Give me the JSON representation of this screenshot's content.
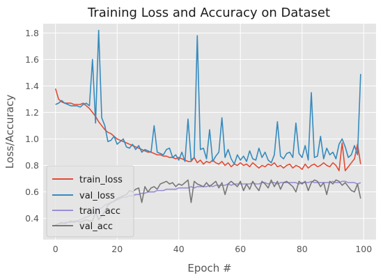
{
  "chart_data": {
    "type": "line",
    "title": "Training Loss and Accuracy on Dataset",
    "xlabel": "Epoch #",
    "ylabel": "Loss/Accuracy",
    "xlim": [
      -4,
      104
    ],
    "ylim": [
      0.24,
      1.87
    ],
    "xticks": [
      0,
      20,
      40,
      60,
      80,
      100
    ],
    "yticks": [
      0.4,
      0.6,
      0.8,
      1.0,
      1.2,
      1.4,
      1.6,
      1.8
    ],
    "ytick_labels": [
      "0.4",
      "0.6",
      "0.8",
      "1.0",
      "1.2",
      "1.4",
      "1.6",
      "1.8"
    ],
    "grid": true,
    "legend_position": "lower-left",
    "colors": {
      "plot_bg": "#E5E5E5",
      "grid": "#FFFFFF",
      "train_loss": "#E24A33",
      "val_loss": "#348ABD",
      "train_acc": "#988ED5",
      "val_acc": "#777777"
    },
    "series": [
      {
        "name": "train_loss",
        "values": [
          1.38,
          1.3,
          1.28,
          1.27,
          1.27,
          1.27,
          1.26,
          1.26,
          1.26,
          1.27,
          1.25,
          1.23,
          1.2,
          1.17,
          1.13,
          1.1,
          1.07,
          1.05,
          1.04,
          1.02,
          1.0,
          0.99,
          0.98,
          0.97,
          0.96,
          0.95,
          0.94,
          0.93,
          0.92,
          0.91,
          0.9,
          0.9,
          0.89,
          0.88,
          0.88,
          0.87,
          0.87,
          0.86,
          0.86,
          0.85,
          0.86,
          0.85,
          0.84,
          0.83,
          0.83,
          0.86,
          0.82,
          0.84,
          0.81,
          0.83,
          0.82,
          0.84,
          0.82,
          0.81,
          0.83,
          0.8,
          0.82,
          0.79,
          0.81,
          0.8,
          0.82,
          0.8,
          0.81,
          0.79,
          0.82,
          0.8,
          0.78,
          0.8,
          0.79,
          0.81,
          0.8,
          0.82,
          0.79,
          0.8,
          0.78,
          0.8,
          0.81,
          0.78,
          0.8,
          0.79,
          0.77,
          0.81,
          0.78,
          0.8,
          0.81,
          0.79,
          0.8,
          0.82,
          0.8,
          0.79,
          0.82,
          0.8,
          0.76,
          0.97,
          0.76,
          0.79,
          0.82,
          0.85,
          0.96,
          0.81
        ]
      },
      {
        "name": "val_loss",
        "values": [
          1.26,
          1.27,
          1.29,
          1.27,
          1.26,
          1.25,
          1.25,
          1.25,
          1.24,
          1.26,
          1.27,
          1.25,
          1.6,
          1.12,
          1.82,
          1.16,
          1.1,
          0.98,
          0.99,
          1.02,
          0.96,
          0.98,
          1.0,
          0.94,
          0.93,
          0.96,
          0.92,
          0.95,
          0.9,
          0.92,
          0.91,
          0.9,
          1.1,
          0.9,
          0.89,
          0.88,
          0.92,
          0.93,
          0.86,
          0.88,
          0.84,
          0.9,
          0.83,
          1.15,
          0.84,
          0.86,
          1.78,
          0.92,
          0.93,
          0.85,
          1.07,
          0.83,
          0.87,
          0.9,
          1.16,
          0.86,
          0.92,
          0.85,
          0.81,
          0.88,
          0.84,
          0.87,
          0.83,
          0.91,
          0.85,
          0.84,
          0.93,
          0.86,
          0.9,
          0.84,
          0.82,
          0.88,
          1.13,
          0.87,
          0.85,
          0.89,
          0.9,
          0.86,
          1.12,
          0.89,
          0.86,
          0.95,
          0.84,
          1.35,
          0.86,
          0.87,
          1.02,
          0.85,
          0.93,
          0.88,
          0.9,
          0.85,
          0.96,
          1.0,
          0.94,
          0.86,
          0.88,
          0.95,
          0.88,
          1.49
        ]
      },
      {
        "name": "train_acc",
        "values": [
          0.35,
          0.36,
          0.36,
          0.37,
          0.37,
          0.37,
          0.38,
          0.38,
          0.39,
          0.4,
          0.41,
          0.42,
          0.44,
          0.45,
          0.47,
          0.48,
          0.5,
          0.51,
          0.52,
          0.53,
          0.54,
          0.55,
          0.56,
          0.56,
          0.57,
          0.57,
          0.58,
          0.58,
          0.59,
          0.59,
          0.6,
          0.6,
          0.6,
          0.61,
          0.61,
          0.61,
          0.62,
          0.62,
          0.62,
          0.62,
          0.63,
          0.63,
          0.63,
          0.63,
          0.64,
          0.63,
          0.64,
          0.64,
          0.64,
          0.64,
          0.65,
          0.64,
          0.65,
          0.65,
          0.65,
          0.65,
          0.66,
          0.65,
          0.66,
          0.66,
          0.66,
          0.66,
          0.66,
          0.66,
          0.67,
          0.66,
          0.66,
          0.67,
          0.67,
          0.66,
          0.67,
          0.67,
          0.66,
          0.67,
          0.67,
          0.67,
          0.67,
          0.67,
          0.67,
          0.66,
          0.67,
          0.67,
          0.67,
          0.68,
          0.67,
          0.67,
          0.67,
          0.67,
          0.67,
          0.67,
          0.68,
          0.67,
          0.67,
          0.68,
          0.68,
          0.67,
          0.67,
          0.67,
          0.66,
          0.67
        ]
      },
      {
        "name": "val_acc",
        "values": [
          0.35,
          0.36,
          0.37,
          0.36,
          0.37,
          0.38,
          0.37,
          0.38,
          0.37,
          0.38,
          0.39,
          0.38,
          0.38,
          0.45,
          0.39,
          0.42,
          0.45,
          0.5,
          0.52,
          0.53,
          0.55,
          0.56,
          0.57,
          0.58,
          0.61,
          0.6,
          0.62,
          0.63,
          0.52,
          0.64,
          0.6,
          0.63,
          0.64,
          0.62,
          0.66,
          0.67,
          0.68,
          0.66,
          0.67,
          0.64,
          0.66,
          0.65,
          0.67,
          0.69,
          0.52,
          0.68,
          0.66,
          0.65,
          0.64,
          0.67,
          0.64,
          0.66,
          0.68,
          0.63,
          0.67,
          0.58,
          0.66,
          0.68,
          0.66,
          0.64,
          0.68,
          0.61,
          0.66,
          0.62,
          0.68,
          0.64,
          0.61,
          0.68,
          0.66,
          0.63,
          0.69,
          0.64,
          0.68,
          0.62,
          0.67,
          0.68,
          0.66,
          0.64,
          0.6,
          0.68,
          0.66,
          0.68,
          0.61,
          0.67,
          0.69,
          0.68,
          0.64,
          0.67,
          0.58,
          0.68,
          0.66,
          0.69,
          0.68,
          0.65,
          0.67,
          0.64,
          0.61,
          0.6,
          0.66,
          0.55
        ]
      }
    ]
  }
}
